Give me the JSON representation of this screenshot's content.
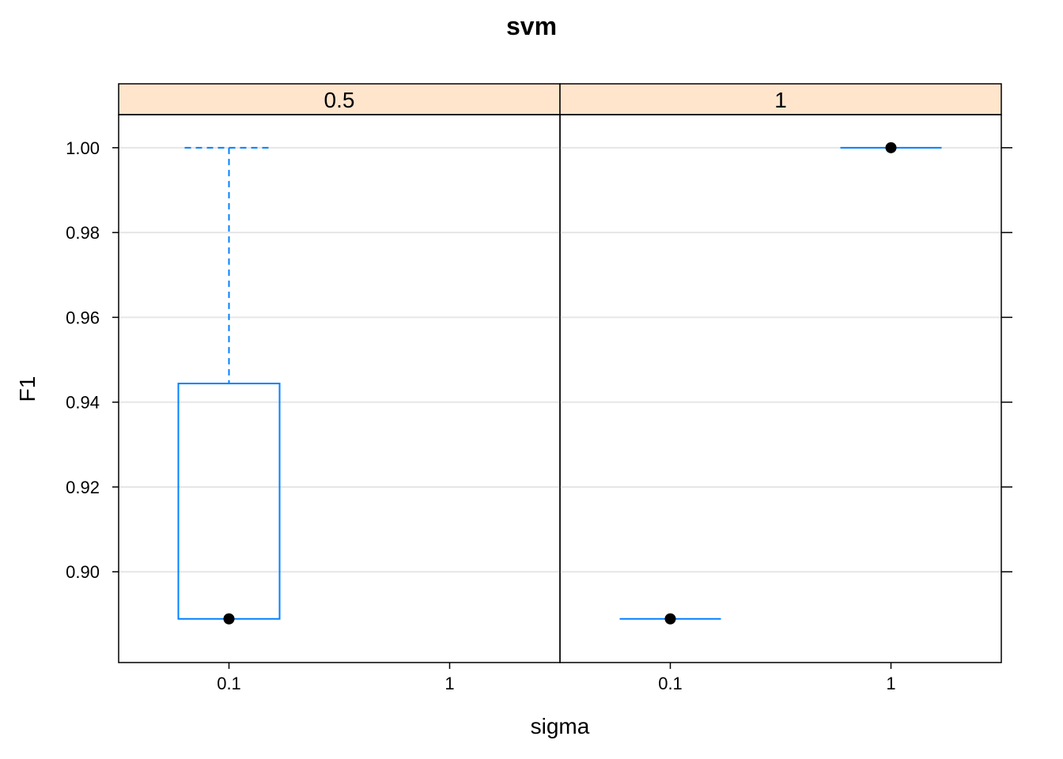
{
  "chart_data": {
    "type": "box",
    "title": "svm",
    "xlabel": "sigma",
    "ylabel": "F1",
    "ylim": [
      0.8786,
      1.0078
    ],
    "yticks": [
      "0.90",
      "0.92",
      "0.94",
      "0.96",
      "0.98",
      "1.00"
    ],
    "grid": "horizontal",
    "panels": [
      {
        "strip_label": "0.5",
        "categories": [
          "0.1",
          "1"
        ],
        "boxes": [
          {
            "category": "0.1",
            "whisker_low": 0.8889,
            "q1": 0.8889,
            "median": 0.8889,
            "q3": 0.9444,
            "whisker_high": 1.0
          }
        ]
      },
      {
        "strip_label": "1",
        "categories": [
          "0.1",
          "1"
        ],
        "boxes": [
          {
            "category": "0.1",
            "whisker_low": 0.8889,
            "q1": 0.8889,
            "median": 0.8889,
            "q3": 0.8889,
            "whisker_high": 0.8889
          },
          {
            "category": "1",
            "whisker_low": 1.0,
            "q1": 1.0,
            "median": 1.0,
            "q3": 1.0,
            "whisker_high": 1.0
          }
        ]
      }
    ],
    "colors": {
      "box": "#0080ff",
      "median_dot": "#000000",
      "strip": "#ffe5cc",
      "grid": "#e6e6e6"
    }
  }
}
